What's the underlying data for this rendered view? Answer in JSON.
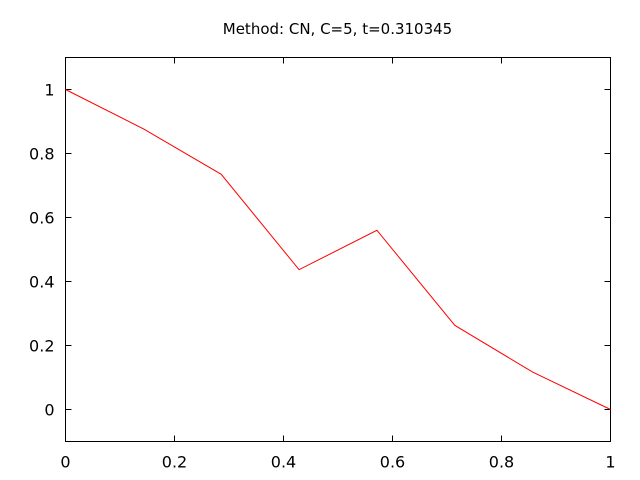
{
  "chart_data": {
    "type": "line",
    "title": "Method: CN, C=5, t=0.310345",
    "xlabel": "",
    "ylabel": "",
    "xlim": [
      0,
      1
    ],
    "ylim": [
      -0.1,
      1.1
    ],
    "xticks": [
      0,
      0.2,
      0.4,
      0.6,
      0.8,
      1
    ],
    "xtick_labels": [
      "0",
      "0.2",
      "0.4",
      "0.6",
      "0.8",
      "1"
    ],
    "yticks": [
      0,
      0.2,
      0.4,
      0.6,
      0.8,
      1
    ],
    "ytick_labels": [
      "0",
      "0.2",
      "0.4",
      "0.6",
      "0.8",
      "1"
    ],
    "grid": false,
    "legend": "none",
    "series": [
      {
        "color": "#ff0000",
        "x": [
          0,
          0.142857,
          0.285714,
          0.428571,
          0.571429,
          0.714286,
          0.857143,
          1
        ],
        "y": [
          1.0,
          0.877,
          0.735,
          0.437,
          0.56,
          0.263,
          0.117,
          0.0
        ]
      }
    ]
  }
}
